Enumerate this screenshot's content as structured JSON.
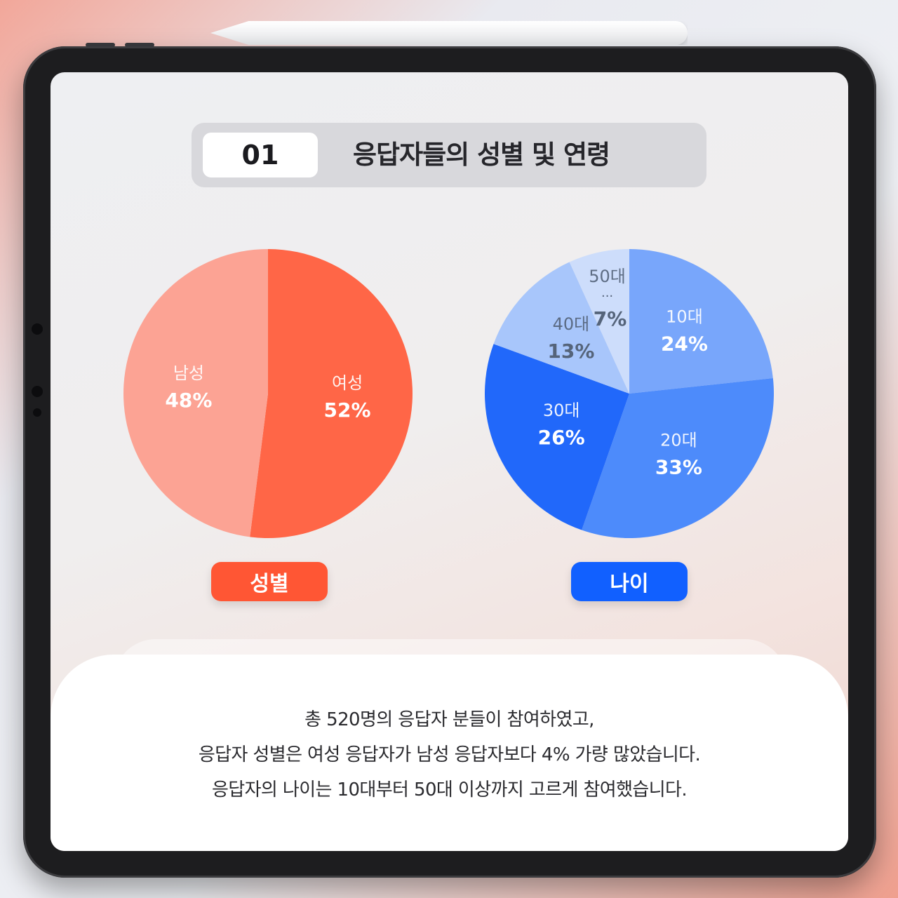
{
  "header": {
    "number": "01",
    "title": "응답자들의 성별 및 연령"
  },
  "chart_data": [
    {
      "type": "pie",
      "title": "성별",
      "slices": [
        {
          "label": "여성",
          "value": 52,
          "display": "52%",
          "color": "#ff6647"
        },
        {
          "label": "남성",
          "value": 48,
          "display": "48%",
          "color": "#fca394"
        }
      ]
    },
    {
      "type": "pie",
      "title": "나이",
      "slices": [
        {
          "label": "10대",
          "value": 24,
          "display": "24%",
          "color": "#78a6fb"
        },
        {
          "label": "20대",
          "value": 33,
          "display": "33%",
          "color": "#4d8bfb"
        },
        {
          "label": "30대",
          "value": 26,
          "display": "26%",
          "color": "#2168fa"
        },
        {
          "label": "40대",
          "value": 13,
          "display": "13%",
          "color": "#a8c6fb"
        },
        {
          "label": "50대",
          "value": 7,
          "display": "7%",
          "sublabel": "···",
          "color": "#cdddfb"
        }
      ]
    }
  ],
  "description": [
    "총 520명의 응답자 분들이 참여하였고,",
    "응답자 성별은 여성 응답자가 남성 응답자보다 4% 가량 많았습니다.",
    "응답자의 나이는 10대부터 50대 이상까지 고르게 참여했습니다."
  ]
}
